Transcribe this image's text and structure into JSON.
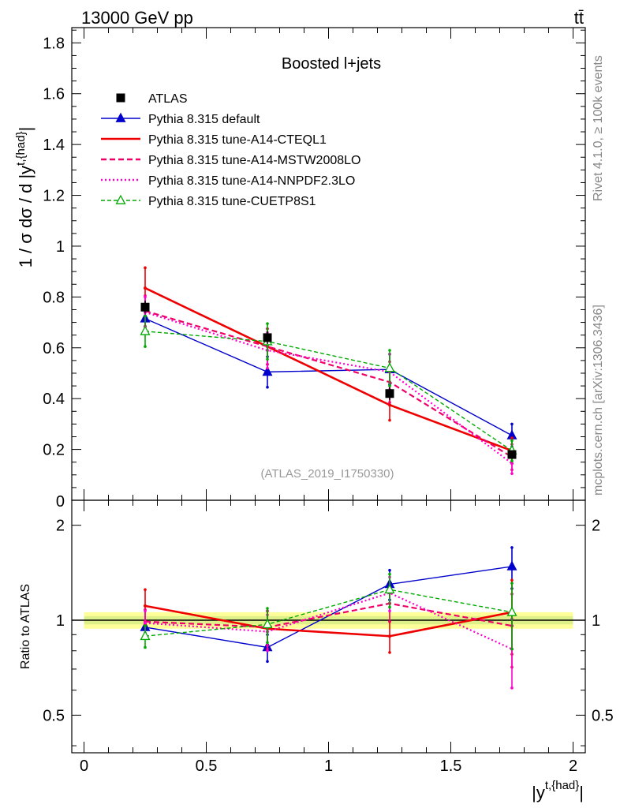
{
  "header": {
    "energy_label": "13000 GeV pp",
    "process_label": "tt̄",
    "rivet_label": "Rivet 4.1.0, ≥ 100k events",
    "mcplots_label": "mcplots.cern.ch [arXiv:1306.3436]"
  },
  "chart_data": [
    {
      "type": "line",
      "panel": "main",
      "title": "Boosted l+jets",
      "analysis_tag": "(ATLAS_2019_I1750330)",
      "ylabel": "1 / σ dσ / d |y^{t,{had}}|",
      "ylabel_parts": {
        "main": "1 / σ dσ / d |y",
        "sup": "t,{had}",
        "tail": "|"
      },
      "xlim": [
        -0.05,
        2.05
      ],
      "ylim": [
        0,
        1.86
      ],
      "yticks": [
        0.2,
        0.4,
        0.6,
        0.8,
        1,
        1.2,
        1.4,
        1.6,
        1.8
      ],
      "ytick_labels": [
        "0.2",
        "0.4",
        "0.6",
        "0.8",
        "1",
        "1.2",
        "1.4",
        "1.6",
        "1.8"
      ],
      "bottom_tick_label": "0",
      "x": [
        0.25,
        0.75,
        1.25,
        1.75
      ],
      "data": {
        "name": "ATLAS",
        "values": [
          0.76,
          0.64,
          0.42,
          0.18
        ],
        "errors": [
          0.025,
          0.025,
          0.025,
          0.012
        ]
      },
      "series": [
        {
          "name": "Pythia 8.315 default",
          "color": "#0000cc",
          "dash": "solid",
          "marker": "filled-triangle",
          "values": [
            0.715,
            0.505,
            0.515,
            0.255
          ],
          "errors": [
            0.03,
            0.06,
            0.06,
            0.045
          ]
        },
        {
          "name": "Pythia 8.315 tune-A14-CTEQL1",
          "color": "#ee0000",
          "dash": "solid",
          "marker": "none",
          "values": [
            0.835,
            0.605,
            0.375,
            0.195
          ],
          "errors": [
            0.08,
            0.07,
            0.06,
            0.05
          ]
        },
        {
          "name": "Pythia 8.315 tune-A14-MSTW2008LO",
          "color": "#ee0066",
          "dash": "dashed",
          "marker": "none",
          "values": [
            0.745,
            0.605,
            0.465,
            0.17
          ],
          "errors": [
            0.06,
            0.07,
            0.08,
            0.05
          ]
        },
        {
          "name": "Pythia 8.315 tune-A14-NNPDF2.3LO",
          "color": "#ff00cc",
          "dash": "dotted",
          "marker": "none",
          "values": [
            0.74,
            0.59,
            0.505,
            0.145
          ],
          "errors": [
            0.06,
            0.07,
            0.07,
            0.04
          ]
        },
        {
          "name": "Pythia 8.315 tune-CUETP8S1",
          "color": "#00aa00",
          "dash": "dashed",
          "marker": "open-triangle",
          "values": [
            0.665,
            0.625,
            0.52,
            0.195
          ],
          "errors": [
            0.06,
            0.07,
            0.07,
            0.04
          ]
        }
      ]
    },
    {
      "type": "line",
      "panel": "ratio",
      "ylabel": "Ratio to ATLAS",
      "xlabel": "|y^{t,{had}}|",
      "xlabel_parts": {
        "main": "|y",
        "sup": "t,{had}",
        "tail": "|"
      },
      "xlim": [
        -0.05,
        2.05
      ],
      "xticks": [
        0,
        0.5,
        1,
        1.5,
        2
      ],
      "xtick_labels": [
        "0",
        "0.5",
        "1",
        "1.5",
        "2"
      ],
      "yscale": "log",
      "ylim": [
        0.38,
        2.4
      ],
      "yticks": [
        0.5,
        1,
        2
      ],
      "ytick_labels": [
        "0.5",
        "1",
        "2"
      ],
      "band_inner": [
        0.97,
        1.03
      ],
      "band_outer": [
        0.94,
        1.06
      ],
      "x": [
        0.25,
        0.75,
        1.25,
        1.75
      ],
      "series": [
        {
          "name": "Pythia 8.315 default",
          "color": "#0000cc",
          "dash": "solid",
          "marker": "filled-triangle",
          "values": [
            0.95,
            0.82,
            1.3,
            1.48
          ],
          "errors": [
            0.04,
            0.08,
            0.14,
            0.22
          ]
        },
        {
          "name": "Pythia 8.315 tune-A14-CTEQL1",
          "color": "#ee0000",
          "dash": "solid",
          "marker": "none",
          "values": [
            1.11,
            0.94,
            0.89,
            1.06
          ],
          "errors": [
            0.14,
            0.13,
            0.1,
            0.28
          ]
        },
        {
          "name": "Pythia 8.315 tune-A14-MSTW2008LO",
          "color": "#ee0066",
          "dash": "dashed",
          "marker": "none",
          "values": [
            0.99,
            0.95,
            1.13,
            0.96
          ],
          "errors": [
            0.09,
            0.12,
            0.14,
            0.25
          ]
        },
        {
          "name": "Pythia 8.315 tune-A14-NNPDF2.3LO",
          "color": "#ff00cc",
          "dash": "dotted",
          "marker": "none",
          "values": [
            0.98,
            0.92,
            1.22,
            0.81
          ],
          "errors": [
            0.09,
            0.12,
            0.15,
            0.2
          ]
        },
        {
          "name": "Pythia 8.315 tune-CUETP8S1",
          "color": "#00aa00",
          "dash": "dashed",
          "marker": "open-triangle",
          "values": [
            0.89,
            0.97,
            1.25,
            1.06
          ],
          "errors": [
            0.07,
            0.12,
            0.15,
            0.25
          ]
        }
      ]
    }
  ]
}
